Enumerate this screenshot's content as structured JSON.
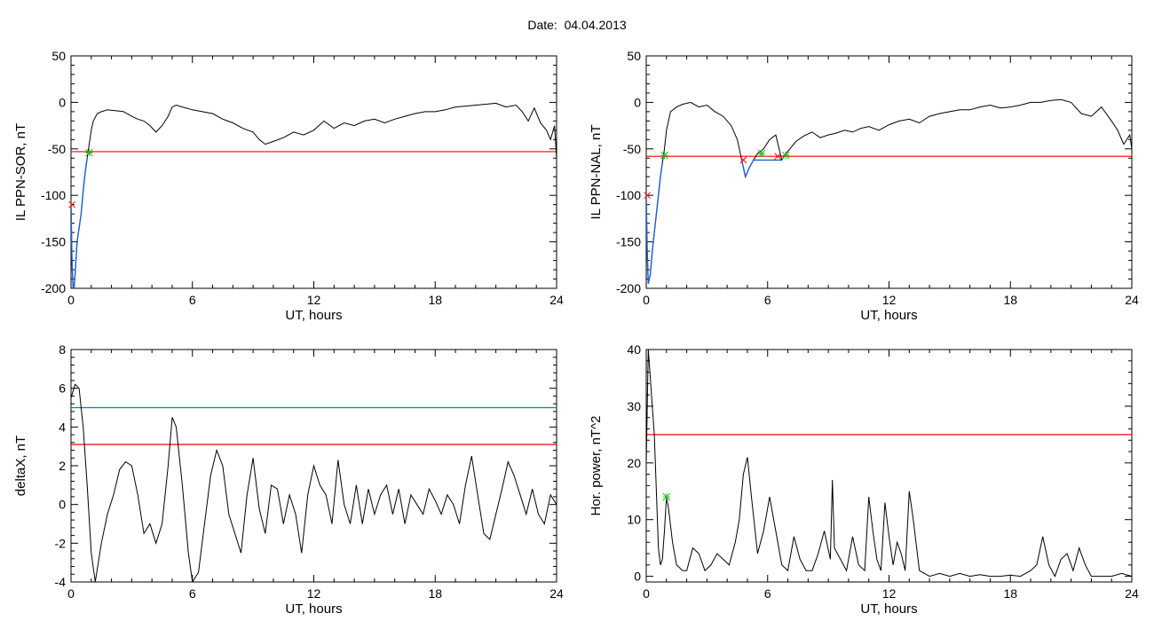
{
  "figure": {
    "title_label": "Date:",
    "title_value": "04.04.2013"
  },
  "chart_data": [
    {
      "type": "line",
      "ylabel": "IL PPN-SOR, nT",
      "xlabel": "UT, hours",
      "xlim": [
        0,
        24
      ],
      "ylim": [
        -200,
        50
      ],
      "xticks": [
        0,
        6,
        12,
        18,
        24
      ],
      "yticks": [
        -200,
        -150,
        -100,
        -50,
        0,
        50
      ],
      "tick_labels_x": [
        "0",
        "6",
        "12",
        "18",
        "24"
      ],
      "tick_labels_y": [
        "-200",
        "-150",
        "-100",
        "-50",
        "0",
        "50"
      ],
      "colors": {
        "main": "#000000",
        "threshold": "#ff0000",
        "highlight": "#1f5fd0",
        "marker_green": "#22bb22",
        "marker_red": "#ff0000"
      },
      "series": [
        {
          "x": [
            0,
            0.05,
            0.1,
            0.15,
            0.2,
            0.3,
            0.4,
            0.5,
            0.6,
            0.7,
            0.8,
            0.9,
            1.0,
            1.1,
            1.3,
            1.5,
            1.8,
            2.2,
            2.6,
            3.0,
            3.3,
            3.6,
            3.9,
            4.2,
            4.5,
            4.8,
            5.0,
            5.2,
            5.5,
            6.0,
            6.5,
            7.0,
            7.5,
            8.0,
            8.5,
            9.0,
            9.3,
            9.6,
            10.0,
            10.5,
            11.0,
            11.5,
            12.0,
            12.5,
            13.0,
            13.5,
            14.0,
            14.5,
            15.0,
            15.5,
            16.0,
            16.5,
            17.0,
            17.5,
            18.0,
            18.5,
            19.0,
            19.5,
            20.0,
            20.5,
            21.0,
            21.5,
            22.0,
            22.3,
            22.6,
            22.9,
            23.2,
            23.5,
            23.7,
            23.9,
            24.0
          ],
          "y": [
            -110,
            -170,
            -200,
            -200,
            -185,
            -150,
            -135,
            -120,
            -95,
            -75,
            -60,
            -45,
            -30,
            -20,
            -12,
            -10,
            -8,
            -9,
            -10,
            -15,
            -18,
            -20,
            -25,
            -32,
            -25,
            -15,
            -5,
            -3,
            -5,
            -8,
            -10,
            -12,
            -18,
            -22,
            -28,
            -32,
            -40,
            -45,
            -42,
            -38,
            -32,
            -35,
            -30,
            -20,
            -28,
            -22,
            -25,
            -20,
            -18,
            -22,
            -18,
            -15,
            -12,
            -10,
            -10,
            -8,
            -5,
            -4,
            -3,
            -2,
            -1,
            -5,
            -3,
            -10,
            -20,
            -6,
            -22,
            -30,
            -40,
            -25,
            -60
          ]
        }
      ],
      "threshold": -53,
      "highlight_range_x": [
        0,
        1.0
      ],
      "markers_green": [
        [
          0.9,
          -54
        ]
      ],
      "markers_red": [
        [
          0.05,
          -110
        ]
      ]
    },
    {
      "type": "line",
      "ylabel": "IL PPN-NAL, nT",
      "xlabel": "UT, hours",
      "xlim": [
        0,
        24
      ],
      "ylim": [
        -200,
        50
      ],
      "xticks": [
        0,
        6,
        12,
        18,
        24
      ],
      "yticks": [
        -200,
        -150,
        -100,
        -50,
        0,
        50
      ],
      "tick_labels_x": [
        "0",
        "6",
        "12",
        "18",
        "24"
      ],
      "tick_labels_y": [
        "-200",
        "-150",
        "-100",
        "-50",
        "0",
        "50"
      ],
      "colors": {
        "main": "#000000",
        "threshold": "#ff0000",
        "highlight": "#1f5fd0",
        "marker_green": "#22bb22",
        "marker_red": "#ff0000"
      },
      "series": [
        {
          "x": [
            0,
            0.05,
            0.1,
            0.2,
            0.3,
            0.4,
            0.5,
            0.6,
            0.7,
            0.8,
            0.9,
            1.0,
            1.2,
            1.5,
            1.8,
            2.2,
            2.6,
            3.0,
            3.4,
            3.8,
            4.2,
            4.5,
            4.7,
            4.9,
            5.1,
            5.3,
            5.5,
            5.8,
            6.1,
            6.4,
            6.7,
            6.9,
            7.1,
            7.4,
            7.8,
            8.2,
            8.6,
            9.0,
            9.4,
            9.8,
            10.2,
            10.6,
            11.0,
            11.5,
            12.0,
            12.5,
            13.0,
            13.5,
            14.0,
            14.5,
            15.0,
            15.5,
            16.0,
            16.5,
            17.0,
            17.5,
            18.0,
            18.5,
            19.0,
            19.5,
            20.0,
            20.5,
            21.0,
            21.5,
            22.0,
            22.5,
            23.0,
            23.3,
            23.6,
            23.9,
            24.0
          ],
          "y": [
            -100,
            -160,
            -195,
            -185,
            -160,
            -140,
            -120,
            -100,
            -80,
            -65,
            -50,
            -30,
            -10,
            -5,
            -2,
            0,
            -5,
            -3,
            -10,
            -15,
            -25,
            -40,
            -60,
            -80,
            -70,
            -62,
            -55,
            -50,
            -40,
            -35,
            -62,
            -55,
            -50,
            -42,
            -36,
            -32,
            -38,
            -35,
            -33,
            -30,
            -32,
            -28,
            -26,
            -30,
            -24,
            -20,
            -18,
            -22,
            -15,
            -12,
            -10,
            -8,
            -8,
            -5,
            -3,
            -6,
            -5,
            -3,
            0,
            0,
            2,
            3,
            0,
            -12,
            -15,
            -5,
            -20,
            -30,
            -45,
            -35,
            -50
          ]
        }
      ],
      "threshold": -58,
      "highlight_range_x": [
        0,
        1.0
      ],
      "highlight2_x": [
        4.6,
        7.0
      ],
      "markers_green": [
        [
          0.9,
          -57
        ],
        [
          5.7,
          -55
        ],
        [
          6.9,
          -57
        ]
      ],
      "markers_red": [
        [
          0.05,
          -100
        ],
        [
          4.8,
          -62
        ],
        [
          6.5,
          -58
        ]
      ]
    },
    {
      "type": "line",
      "ylabel": "deltaX, nT",
      "xlabel": "UT, hours",
      "xlim": [
        0,
        24
      ],
      "ylim": [
        -4,
        8
      ],
      "xticks": [
        0,
        6,
        12,
        18,
        24
      ],
      "yticks": [
        -4,
        -2,
        0,
        2,
        4,
        6,
        8
      ],
      "tick_labels_x": [
        "0",
        "6",
        "12",
        "18",
        "24"
      ],
      "tick_labels_y": [
        "-4",
        "-2",
        "0",
        "2",
        "4",
        "6",
        "8"
      ],
      "colors": {
        "main": "#000000",
        "threshold": "#ff0000",
        "threshold2": "#008b8b"
      },
      "series": [
        {
          "x": [
            0,
            0.2,
            0.4,
            0.6,
            0.8,
            1.0,
            1.2,
            1.5,
            1.8,
            2.1,
            2.4,
            2.7,
            3.0,
            3.3,
            3.6,
            3.9,
            4.2,
            4.5,
            4.8,
            5.0,
            5.2,
            5.5,
            5.8,
            6.0,
            6.3,
            6.6,
            6.9,
            7.2,
            7.5,
            7.8,
            8.1,
            8.4,
            8.7,
            9.0,
            9.3,
            9.6,
            9.9,
            10.2,
            10.5,
            10.8,
            11.1,
            11.4,
            11.7,
            12.0,
            12.3,
            12.6,
            12.9,
            13.2,
            13.5,
            13.8,
            14.1,
            14.4,
            14.7,
            15.0,
            15.3,
            15.6,
            15.9,
            16.2,
            16.5,
            16.8,
            17.1,
            17.4,
            17.7,
            18.0,
            18.3,
            18.6,
            18.9,
            19.2,
            19.5,
            19.8,
            20.1,
            20.4,
            20.7,
            21.0,
            21.3,
            21.6,
            21.9,
            22.2,
            22.5,
            22.8,
            23.1,
            23.4,
            23.7,
            24.0
          ],
          "y": [
            5.5,
            6.2,
            6.0,
            4.0,
            1.0,
            -2.5,
            -4.0,
            -2.0,
            -0.5,
            0.5,
            1.8,
            2.2,
            2.0,
            0.5,
            -1.5,
            -1.0,
            -2.0,
            -1.0,
            2.0,
            4.5,
            4.0,
            1.0,
            -2.5,
            -4.0,
            -3.5,
            -1.0,
            1.5,
            2.8,
            2.0,
            -0.5,
            -1.5,
            -2.5,
            0.5,
            2.4,
            -0.2,
            -1.5,
            1.0,
            0.8,
            -1.0,
            0.5,
            -0.5,
            -2.5,
            0.5,
            2.0,
            1.0,
            0.5,
            -1.0,
            2.3,
            0.0,
            -1.0,
            1.0,
            -1.0,
            0.8,
            -0.5,
            0.5,
            1.0,
            -0.5,
            0.8,
            -1.0,
            0.5,
            0.0,
            -0.5,
            0.8,
            0.2,
            -0.5,
            0.5,
            0.0,
            -1.0,
            1.0,
            2.5,
            0.5,
            -1.5,
            -1.8,
            -0.5,
            0.8,
            2.2,
            1.5,
            0.5,
            -0.5,
            0.8,
            -0.5,
            -1.0,
            0.5,
            0.0
          ]
        }
      ],
      "threshold": 3.1,
      "threshold2": 5.0
    },
    {
      "type": "line",
      "ylabel": "Hor. power, nT^2",
      "xlabel": "UT, hours",
      "xlim": [
        0,
        24
      ],
      "ylim": [
        -1,
        40
      ],
      "xticks": [
        0,
        6,
        12,
        18,
        24
      ],
      "yticks": [
        0,
        10,
        20,
        30,
        40
      ],
      "tick_labels_x": [
        "0",
        "6",
        "12",
        "18",
        "24"
      ],
      "tick_labels_y": [
        "0",
        "10",
        "20",
        "30",
        "40"
      ],
      "colors": {
        "main": "#000000",
        "threshold": "#ff0000",
        "marker_green": "#22bb22"
      },
      "series": [
        {
          "x": [
            0,
            0.1,
            0.2,
            0.3,
            0.4,
            0.5,
            0.6,
            0.7,
            0.8,
            0.9,
            1.0,
            1.1,
            1.3,
            1.5,
            1.8,
            2.0,
            2.3,
            2.6,
            2.9,
            3.2,
            3.5,
            3.8,
            4.1,
            4.4,
            4.6,
            4.8,
            5.0,
            5.2,
            5.5,
            5.8,
            6.1,
            6.4,
            6.7,
            7.0,
            7.3,
            7.6,
            7.9,
            8.2,
            8.5,
            8.8,
            9.1,
            9.2,
            9.3,
            9.6,
            9.9,
            10.2,
            10.5,
            10.8,
            11.0,
            11.2,
            11.4,
            11.6,
            11.8,
            12.0,
            12.2,
            12.4,
            12.6,
            12.8,
            13.0,
            13.2,
            13.5,
            14.0,
            14.5,
            15.0,
            15.5,
            16.0,
            16.5,
            17.0,
            17.5,
            18.0,
            18.5,
            19.0,
            19.3,
            19.6,
            19.9,
            20.2,
            20.5,
            20.8,
            21.1,
            21.4,
            21.7,
            22.0,
            22.5,
            23.0,
            23.5,
            24.0
          ],
          "y": [
            20,
            40,
            35,
            30,
            25,
            15,
            5,
            2,
            3,
            8,
            14,
            12,
            6,
            2,
            1,
            1,
            5,
            4,
            1,
            2,
            4,
            3,
            2,
            6,
            10,
            18,
            21,
            14,
            4,
            8,
            14,
            8,
            2,
            1,
            7,
            3,
            1,
            1,
            4,
            8,
            3,
            17,
            5,
            3,
            1,
            7,
            2,
            1,
            14,
            8,
            3,
            1,
            13,
            7,
            2,
            6,
            4,
            1,
            15,
            10,
            1,
            0,
            0.5,
            0,
            0.5,
            0,
            0.3,
            0,
            0,
            0.2,
            0,
            1,
            2,
            7,
            2,
            0,
            3,
            4,
            1,
            5,
            2,
            0,
            0,
            0,
            0.5,
            0
          ]
        }
      ],
      "threshold": 25,
      "markers_green": [
        [
          1.0,
          14
        ]
      ]
    }
  ]
}
